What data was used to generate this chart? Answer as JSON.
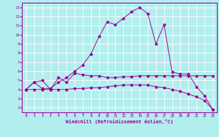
{
  "xlabel": "Windchill (Refroidissement éolien,°C)",
  "ylim": [
    1.5,
    13.5
  ],
  "xlim": [
    -0.5,
    23.5
  ],
  "yticks": [
    2,
    3,
    4,
    5,
    6,
    7,
    8,
    9,
    10,
    11,
    12,
    13
  ],
  "xticks": [
    0,
    1,
    2,
    3,
    4,
    5,
    6,
    7,
    8,
    9,
    10,
    11,
    12,
    13,
    14,
    15,
    16,
    17,
    18,
    19,
    20,
    21,
    22,
    23
  ],
  "line_color": "#990099",
  "bg_color": "#b3eeee",
  "grid_color": "#ffffff",
  "line1_x": [
    0,
    1,
    2,
    3,
    4,
    5,
    6,
    7,
    8,
    9,
    10,
    11,
    12,
    13,
    14,
    15,
    16,
    17,
    18,
    19,
    20,
    21,
    22,
    23
  ],
  "line1_y": [
    4.0,
    4.8,
    5.0,
    4.0,
    5.3,
    4.8,
    5.8,
    5.6,
    5.5,
    5.5,
    5.3,
    5.3,
    5.4,
    5.4,
    5.5,
    5.5,
    5.5,
    5.5,
    5.5,
    5.5,
    5.5,
    5.5,
    5.5,
    5.5
  ],
  "line2_x": [
    0,
    1,
    2,
    3,
    4,
    5,
    6,
    7,
    8,
    9,
    10,
    11,
    12,
    13,
    14,
    15,
    16,
    17,
    18,
    19,
    20,
    21,
    22,
    23
  ],
  "line2_y": [
    4.0,
    4.8,
    4.1,
    4.1,
    4.8,
    5.3,
    6.0,
    6.7,
    7.9,
    9.8,
    11.4,
    11.1,
    11.8,
    12.5,
    13.0,
    12.3,
    9.0,
    11.1,
    5.9,
    5.7,
    5.7,
    4.3,
    3.3,
    1.8
  ],
  "line3_x": [
    0,
    1,
    2,
    3,
    4,
    5,
    6,
    7,
    8,
    9,
    10,
    11,
    12,
    13,
    14,
    15,
    16,
    17,
    18,
    19,
    20,
    21,
    22,
    23
  ],
  "line3_y": [
    4.0,
    4.0,
    4.0,
    4.0,
    4.0,
    4.0,
    4.1,
    4.1,
    4.2,
    4.2,
    4.3,
    4.4,
    4.5,
    4.5,
    4.5,
    4.5,
    4.3,
    4.2,
    4.0,
    3.8,
    3.5,
    3.2,
    2.8,
    1.8
  ],
  "tick_fontsize": 4.0,
  "xlabel_fontsize": 5.0,
  "marker_size": 1.8,
  "linewidth": 0.7
}
